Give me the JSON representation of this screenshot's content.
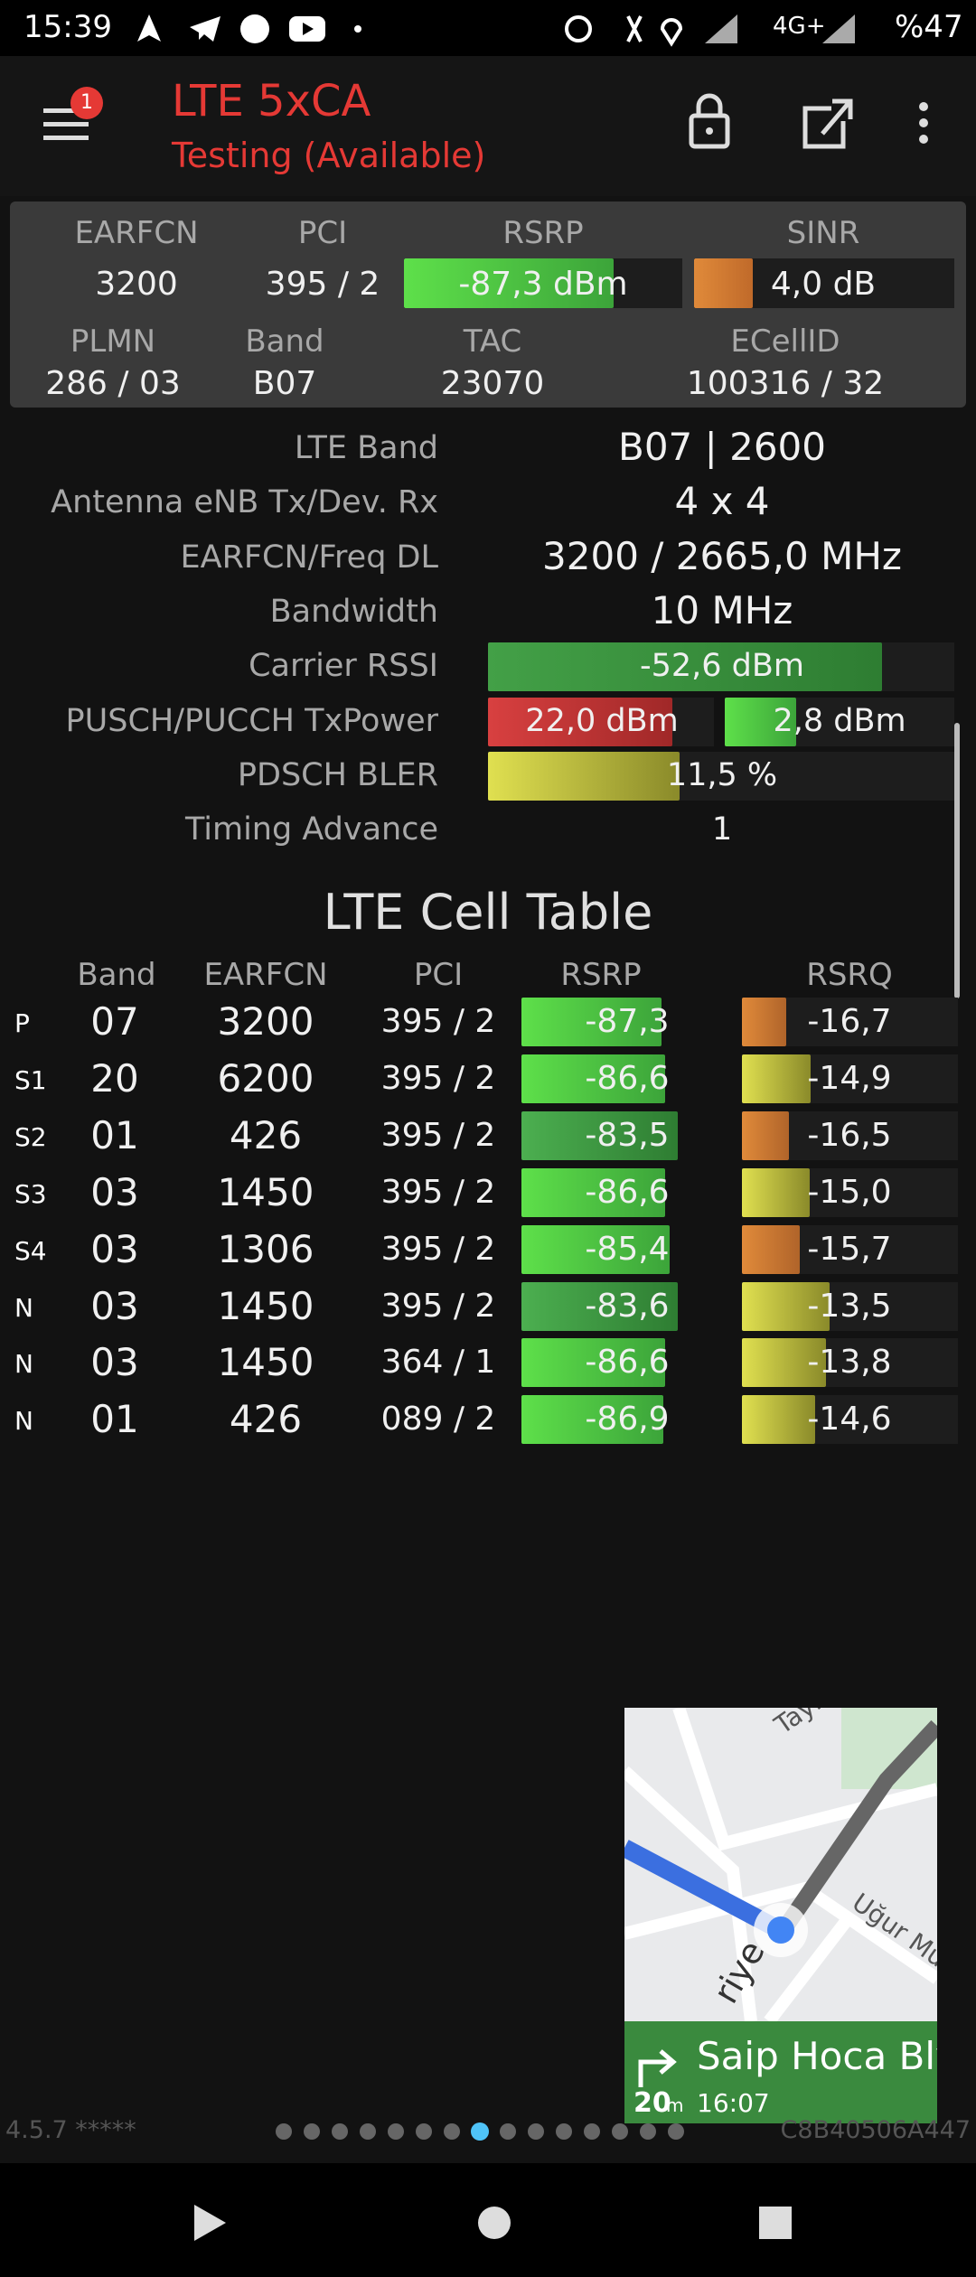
{
  "status_bar": {
    "time": "15:39",
    "network": "4G+",
    "battery": "%47"
  },
  "header": {
    "title": "LTE 5xCA",
    "subtitle": "Testing (Available)",
    "badge": "1"
  },
  "summary": {
    "labels": [
      [
        "EARFCN",
        "PCI",
        "RSRP",
        "SINR"
      ],
      [
        "PLMN",
        "Band",
        "TAC",
        "ECellID"
      ]
    ],
    "values": [
      [
        "3200",
        "395 / 2",
        "-87,3 dBm",
        "4,0 dB"
      ],
      [
        "286 / 03",
        "B07",
        "23070",
        "100316 / 32"
      ]
    ]
  },
  "details": [
    {
      "label": "LTE Band",
      "value": "B07 | 2600"
    },
    {
      "label": "Antenna eNB Tx/Dev. Rx",
      "value": "4 x 4"
    },
    {
      "label": "EARFCN/Freq DL",
      "value": "3200 / 2665,0 MHz"
    },
    {
      "label": "Bandwidth",
      "value": "10 MHz"
    },
    {
      "label": "Carrier RSSI",
      "value": "-52,6 dBm"
    },
    {
      "label": "PUSCH/PUCCH TxPower",
      "value": "22,0 dBm",
      "value2": "2,8 dBm"
    },
    {
      "label": "PDSCH BLER",
      "value": "11,5 %"
    },
    {
      "label": "Timing Advance",
      "value": "1"
    }
  ],
  "cell_table": {
    "title": "LTE Cell Table",
    "headers": [
      "Band",
      "EARFCN",
      "PCI",
      "RSRP",
      "RSRQ"
    ],
    "rows": [
      [
        "P",
        "07",
        "3200",
        "395 / 2",
        "-87,3",
        "-16,7"
      ],
      [
        "S1",
        "20",
        "6200",
        "395 / 2",
        "-86,6",
        "-14,9"
      ],
      [
        "S2",
        "01",
        "426",
        "395 / 2",
        "-83,5",
        "-16,5"
      ],
      [
        "S3",
        "03",
        "1450",
        "395 / 2",
        "-86,6",
        "-15,0"
      ],
      [
        "S4",
        "03",
        "1306",
        "395 / 2",
        "-85,4",
        "-15,7"
      ],
      [
        "N",
        "03",
        "1450",
        "395 / 2",
        "-83,6",
        "-13,5"
      ],
      [
        "N",
        "03",
        "1450",
        "364 / 1",
        "-86,6",
        "-13,8"
      ],
      [
        "N",
        "01",
        "426",
        "089 / 2",
        "-86,9",
        "-14,6"
      ]
    ]
  },
  "map": {
    "street": "Saip Hoca Blv.",
    "distance": "20",
    "unit": "m",
    "time": "16:07",
    "labels": [
      "Tayl",
      "Uğur Mu",
      "riye"
    ]
  },
  "footer": {
    "version": "4.5.7 *****",
    "device_id": "C8B40506A447"
  }
}
